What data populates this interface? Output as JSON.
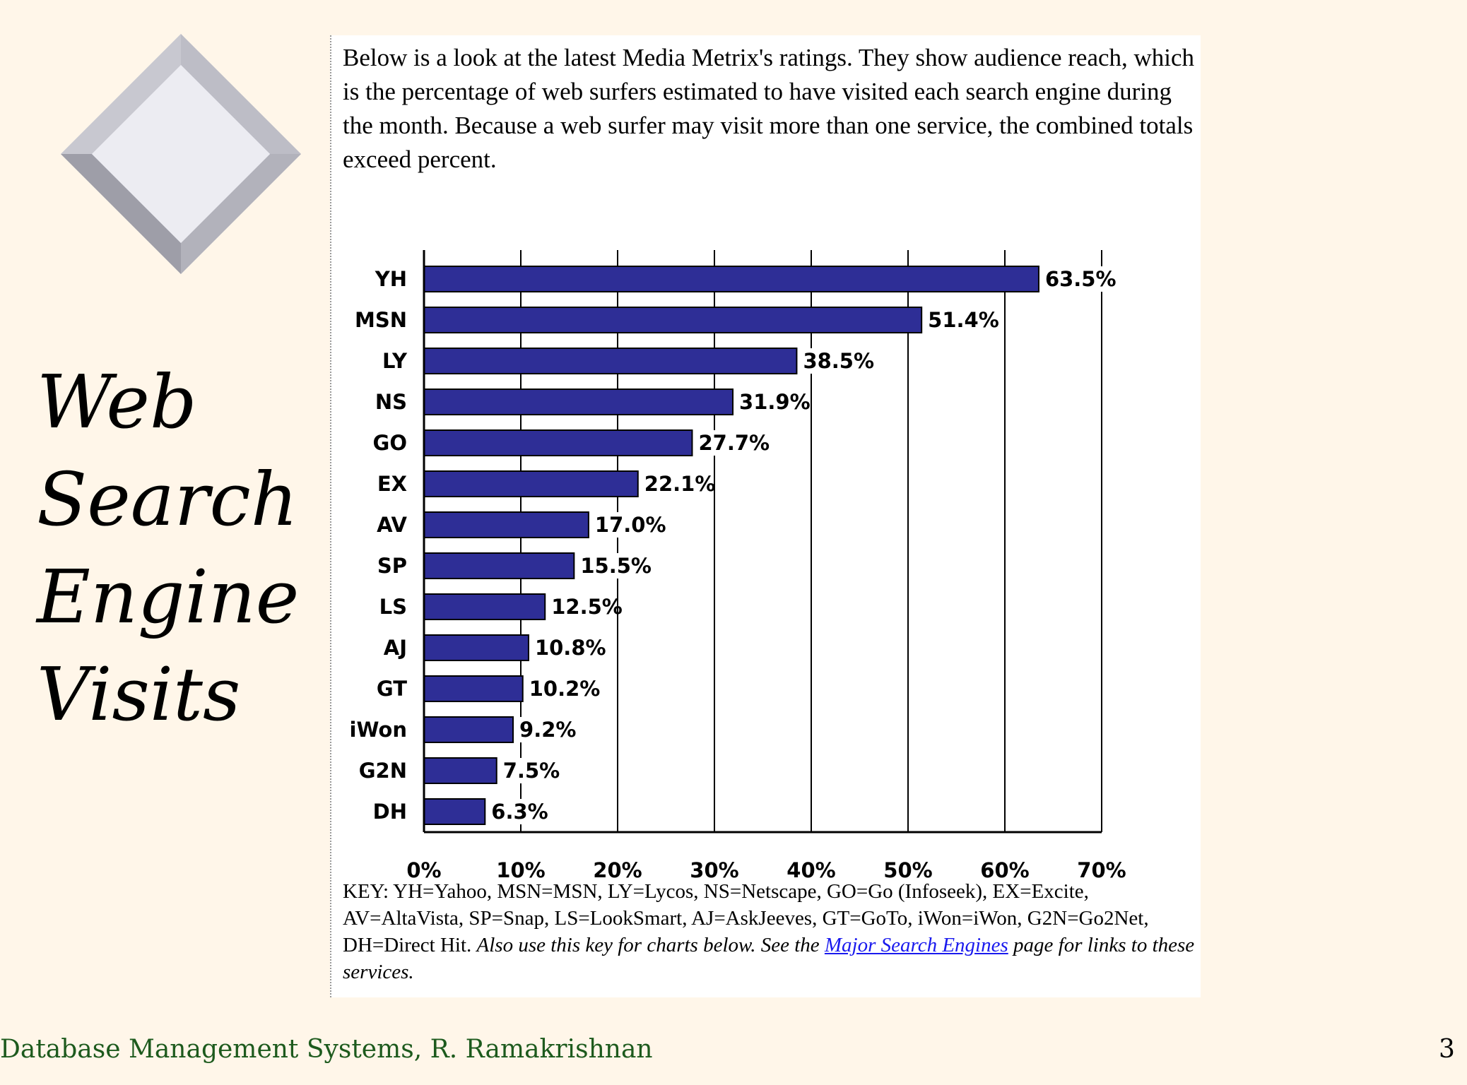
{
  "slide": {
    "title_lines": [
      "Web",
      "Search",
      "Engine",
      "Visits"
    ],
    "footer": "Database Management Systems, R. Ramakrishnan",
    "page_number": "3"
  },
  "intro_text": "Below is a look at the latest Media Metrix's ratings. They show audience reach, which is the percentage of web surfers estimated to have visited each search engine during the month. Because a web surfer may visit more than one service, the combined totals exceed  percent.",
  "key": {
    "plain": "KEY: YH=Yahoo, MSN=MSN, LY=Lycos, NS=Netscape, GO=Go (Infoseek), EX=Excite, AV=AltaVista, SP=Snap, LS=LookSmart, AJ=AskJeeves, GT=GoTo, iWon=iWon, G2N=Go2Net, DH=Direct Hit.",
    "italic_before_link": "Also use this key for charts below. See the",
    "link_text": "Major Search Engines",
    "italic_after_link": "page for links to these services."
  },
  "colors": {
    "bar": "#2e2e96",
    "link": "#1a1aee",
    "footer": "#1d5a1d"
  },
  "chart_data": {
    "type": "bar",
    "orientation": "horizontal",
    "categories": [
      "YH",
      "MSN",
      "LY",
      "NS",
      "GO",
      "EX",
      "AV",
      "SP",
      "LS",
      "AJ",
      "GT",
      "iWon",
      "G2N",
      "DH"
    ],
    "values": [
      63.5,
      51.4,
      38.5,
      31.9,
      27.7,
      22.1,
      17.0,
      15.5,
      12.5,
      10.8,
      10.2,
      9.2,
      7.5,
      6.3
    ],
    "data_labels": [
      "63.5%",
      "51.4%",
      "38.5%",
      "31.9%",
      "27.7%",
      "22.1%",
      "17.0%",
      "15.5%",
      "12.5%",
      "10.8%",
      "10.2%",
      "9.2%",
      "7.5%",
      "6.3%"
    ],
    "x_ticks": [
      0,
      10,
      20,
      30,
      40,
      50,
      60,
      70
    ],
    "x_tick_labels": [
      "0%",
      "10%",
      "20%",
      "30%",
      "40%",
      "50%",
      "60%",
      "70%"
    ],
    "xlim": [
      0,
      70
    ],
    "title": "",
    "xlabel": "",
    "ylabel": "",
    "grid": "vertical"
  }
}
